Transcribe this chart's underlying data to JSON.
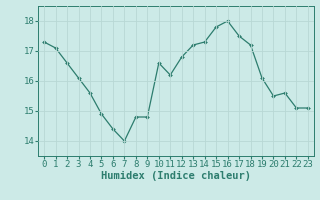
{
  "x": [
    0,
    1,
    2,
    3,
    4,
    5,
    6,
    7,
    8,
    9,
    10,
    11,
    12,
    13,
    14,
    15,
    16,
    17,
    18,
    19,
    20,
    21,
    22,
    23
  ],
  "y": [
    17.3,
    17.1,
    16.6,
    16.1,
    15.6,
    14.9,
    14.4,
    14.0,
    14.8,
    14.8,
    16.6,
    16.2,
    16.8,
    17.2,
    17.3,
    17.8,
    18.0,
    17.5,
    17.2,
    16.1,
    15.5,
    15.6,
    15.1,
    15.1
  ],
  "line_color": "#2d7d6e",
  "marker": "D",
  "marker_size": 2.0,
  "bg_color": "#cceae7",
  "grid_color": "#b8d8d4",
  "xlabel": "Humidex (Indice chaleur)",
  "ylim": [
    13.5,
    18.5
  ],
  "xlim": [
    -0.5,
    23.5
  ],
  "yticks": [
    14,
    15,
    16,
    17,
    18
  ],
  "xticks": [
    0,
    1,
    2,
    3,
    4,
    5,
    6,
    7,
    8,
    9,
    10,
    11,
    12,
    13,
    14,
    15,
    16,
    17,
    18,
    19,
    20,
    21,
    22,
    23
  ],
  "tick_color": "#2d7d6e",
  "label_color": "#2d7d6e",
  "spine_color": "#2d7d6e",
  "xlabel_fontsize": 7.5,
  "tick_fontsize": 6.5
}
